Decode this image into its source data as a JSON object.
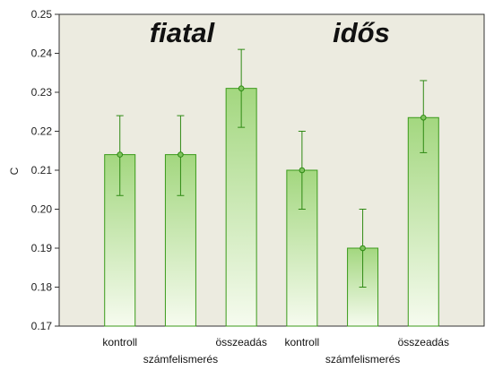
{
  "chart_data": {
    "type": "bar",
    "ylabel": "C",
    "ylim": [
      0.17,
      0.25
    ],
    "yticks": [
      "0.17",
      "0.18",
      "0.19",
      "0.20",
      "0.21",
      "0.22",
      "0.23",
      "0.24",
      "0.25"
    ],
    "groups": [
      "fiatal",
      "idős"
    ],
    "categories": [
      "kontroll",
      "számfelismerés",
      "összeadás",
      "kontroll",
      "számfelismerés",
      "összeadás"
    ],
    "values": [
      0.214,
      0.214,
      0.231,
      0.21,
      0.19,
      0.2235
    ],
    "error_low": [
      0.2035,
      0.2035,
      0.221,
      0.2,
      0.18,
      0.2145
    ],
    "error_high": [
      0.224,
      0.224,
      0.241,
      0.22,
      0.2,
      0.233
    ],
    "grid": false,
    "colors": {
      "plot_background": "#ecebe0",
      "bar_top": "#a3d77f",
      "bar_bottom": "#f6fbef",
      "bar_stroke": "#3a9a1a",
      "error_bar": "#2f8a14",
      "marker_fill": "#7fc35e"
    }
  }
}
